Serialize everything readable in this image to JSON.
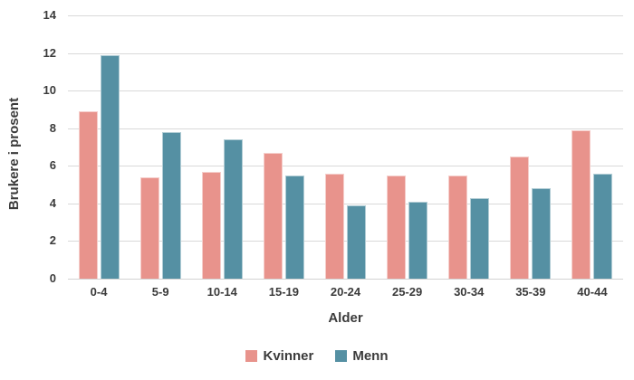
{
  "chart_data": {
    "type": "bar",
    "title": "",
    "categories": [
      "0-4",
      "5-9",
      "10-14",
      "15-19",
      "20-24",
      "25-29",
      "30-34",
      "35-39",
      "40-44"
    ],
    "series": [
      {
        "name": "Kvinner",
        "color": "#E8938C",
        "values": [
          8.9,
          5.4,
          5.7,
          6.7,
          5.6,
          5.5,
          5.5,
          6.5,
          7.9
        ]
      },
      {
        "name": "Menn",
        "color": "#5590A3",
        "values": [
          11.9,
          7.8,
          7.4,
          5.5,
          3.9,
          4.1,
          4.3,
          4.8,
          5.6
        ]
      }
    ],
    "xlabel": "Alder",
    "ylabel": "Brukere i prosent",
    "ylim": [
      0,
      14
    ],
    "yticks": [
      0,
      2,
      4,
      6,
      8,
      10,
      12,
      14
    ],
    "grid": "horizontal",
    "gridline_color": "#D9D9D9",
    "axis_line_color": "#D2D2D2",
    "text_color": "#3B3B3B",
    "legend_position": "bottom-center"
  }
}
